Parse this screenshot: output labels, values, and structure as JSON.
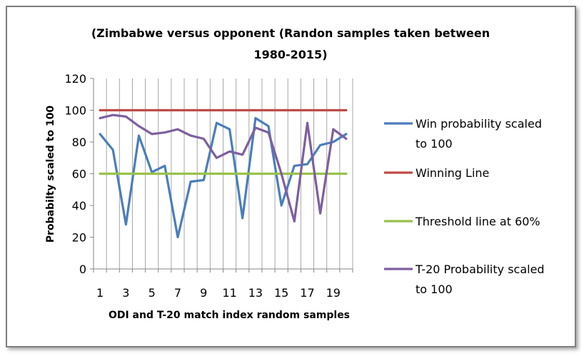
{
  "chart_data": {
    "type": "line",
    "title_lines": [
      "(Zimbabwe versus opponent (Randon samples taken between",
      "1980-2015)"
    ],
    "xlabel": "ODI  and T-20 match index random samples",
    "ylabel": "Probabilty scaled to 100",
    "x": [
      1,
      2,
      3,
      4,
      5,
      6,
      7,
      8,
      9,
      10,
      11,
      12,
      13,
      14,
      15,
      16,
      17,
      18,
      19,
      20
    ],
    "x_tick_labels": [
      "1",
      "3",
      "5",
      "7",
      "9",
      "11",
      "13",
      "15",
      "17",
      "19"
    ],
    "x_tick_positions": [
      1,
      3,
      5,
      7,
      9,
      11,
      13,
      15,
      17,
      19
    ],
    "ylim": [
      0,
      120
    ],
    "y_ticks": [
      0,
      20,
      40,
      60,
      80,
      100,
      120
    ],
    "grid": "vertical",
    "legend_position": "right",
    "series": [
      {
        "name": "Win probability scaled to 100",
        "name_lines": [
          "Win probability scaled",
          "to 100"
        ],
        "color": "#4a7ebb",
        "values": [
          85,
          75,
          28,
          84,
          61,
          65,
          20,
          55,
          56,
          92,
          88,
          32,
          95,
          90,
          40,
          65,
          66,
          78,
          80,
          85
        ]
      },
      {
        "name": "Winning Line",
        "name_lines": [
          "Winning Line"
        ],
        "color": "#be4b48",
        "values": [
          100,
          100,
          100,
          100,
          100,
          100,
          100,
          100,
          100,
          100,
          100,
          100,
          100,
          100,
          100,
          100,
          100,
          100,
          100,
          100
        ]
      },
      {
        "name": "Threshold line at 60%",
        "name_lines": [
          "Threshold line at 60%"
        ],
        "color": "#98c149",
        "values": [
          60,
          60,
          60,
          60,
          60,
          60,
          60,
          60,
          60,
          60,
          60,
          60,
          60,
          60,
          60,
          60,
          60,
          60,
          60,
          60
        ]
      },
      {
        "name": "T-20 Probability scaled to 100",
        "name_lines": [
          "T-20 Probability scaled",
          "to 100"
        ],
        "color": "#7d5fa0",
        "values": [
          95,
          97,
          96,
          90,
          85,
          86,
          88,
          84,
          82,
          70,
          74,
          72,
          89,
          86,
          60,
          30,
          92,
          35,
          88,
          82
        ]
      }
    ]
  }
}
